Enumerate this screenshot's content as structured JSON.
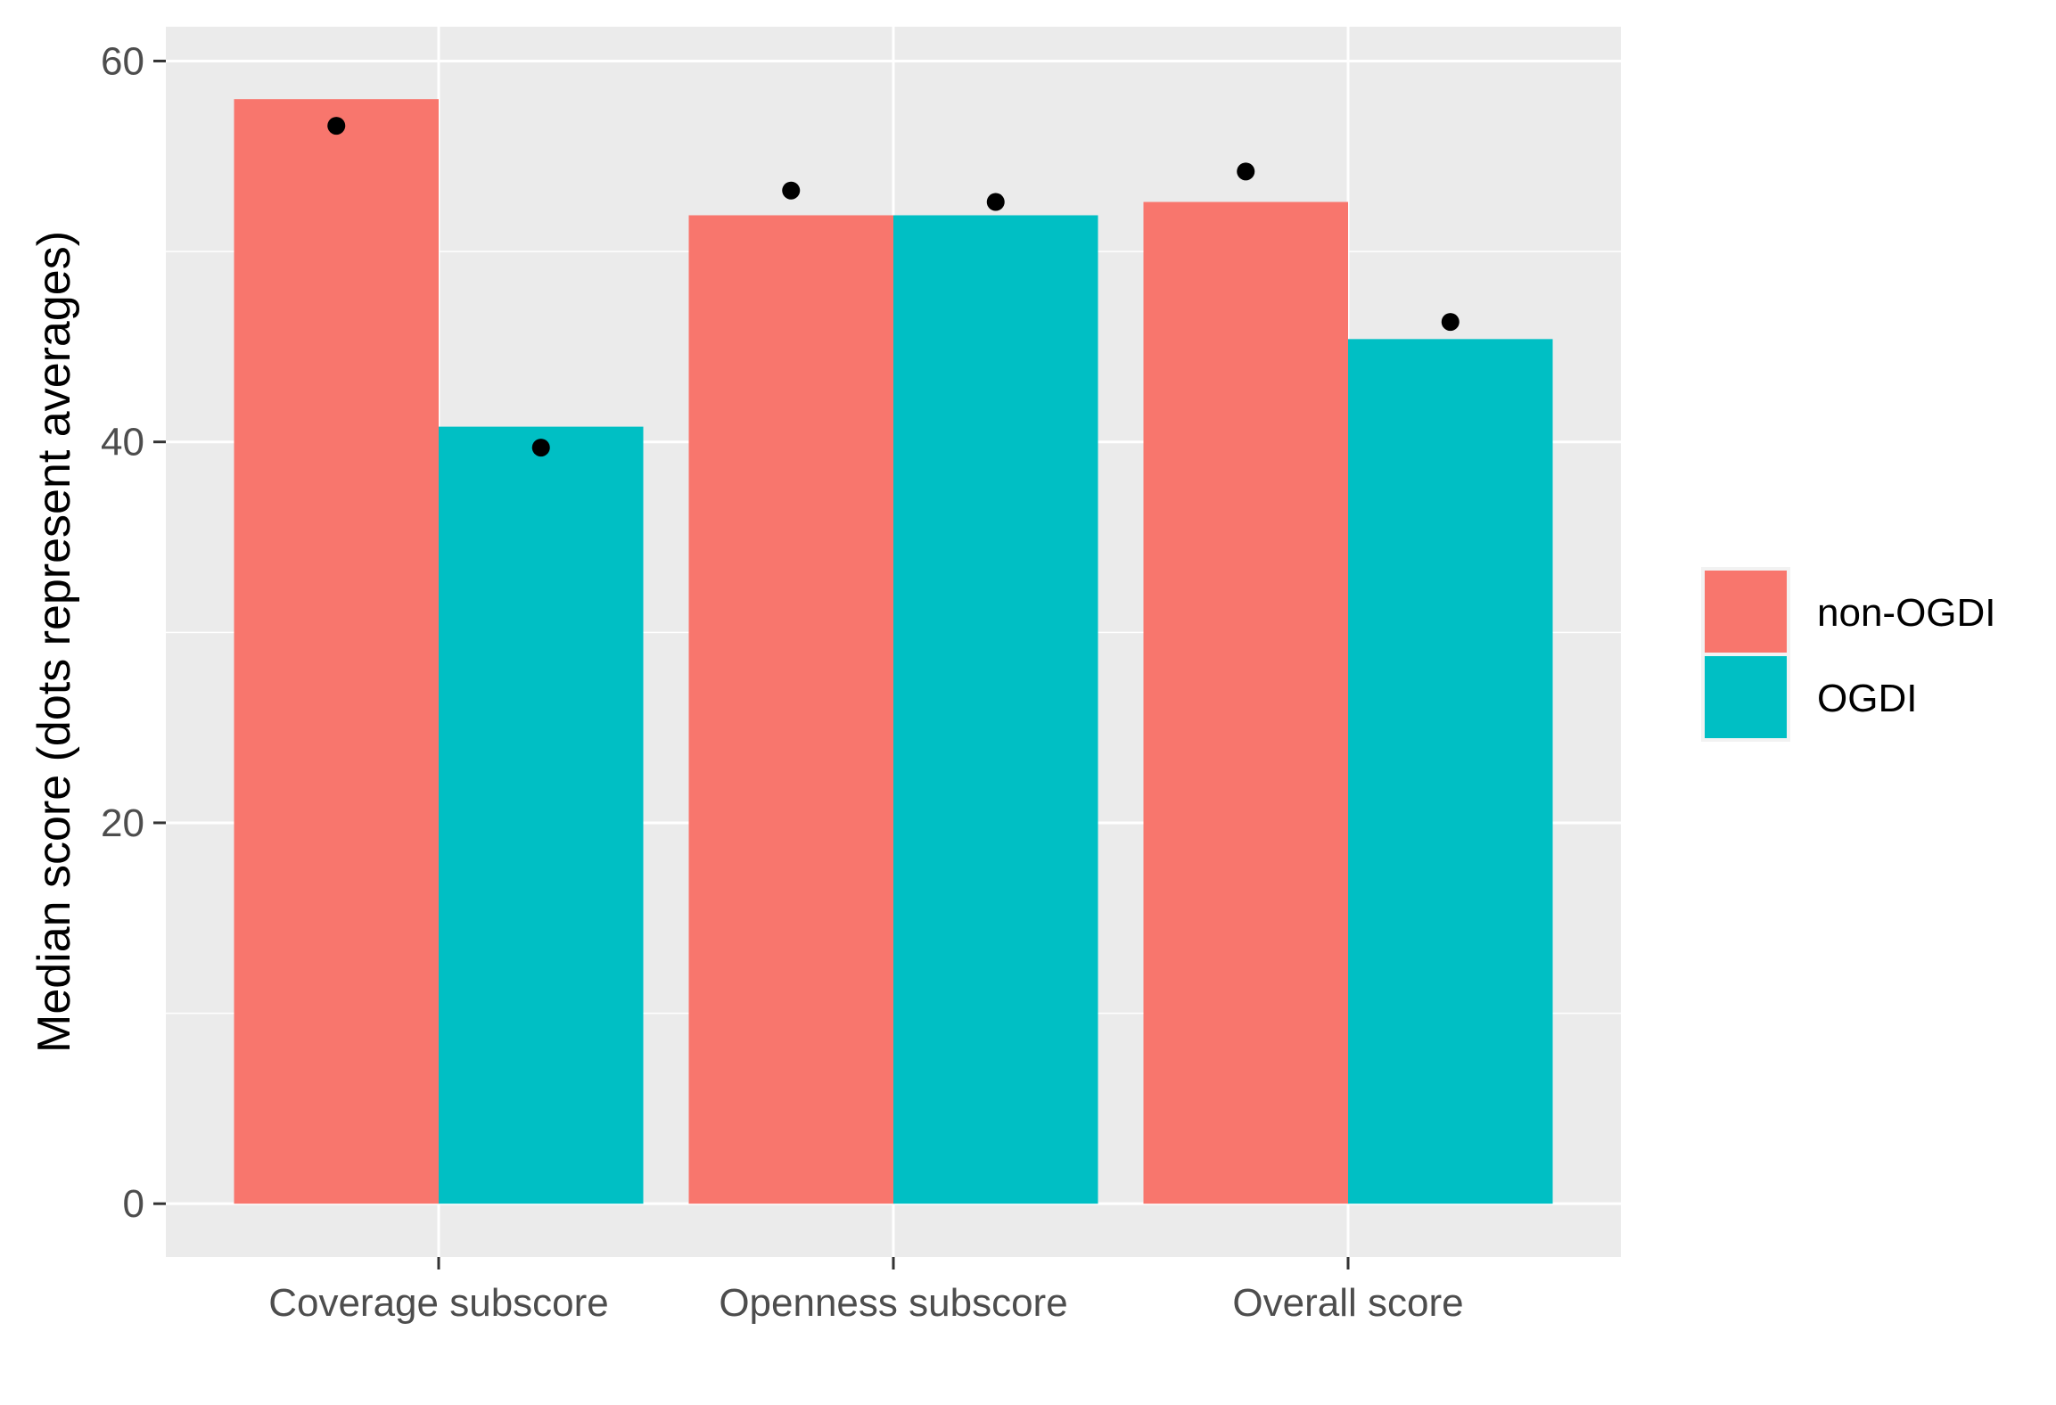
{
  "chart_data": {
    "type": "bar",
    "title": "",
    "xlabel": "",
    "ylabel": "Median score (dots represent averages)",
    "categories": [
      "Coverage subscore",
      "Openness subscore",
      "Overall score"
    ],
    "series": [
      {
        "name": "non-OGDI",
        "color": "#F8766D",
        "values": [
          58.0,
          51.9,
          52.6
        ],
        "averages": [
          56.6,
          53.2,
          54.2
        ]
      },
      {
        "name": "OGDI",
        "color": "#00BFC4",
        "values": [
          40.8,
          51.9,
          45.4
        ],
        "averages": [
          39.7,
          52.6,
          46.3
        ]
      }
    ],
    "ylim": [
      -2.8,
      61.8
    ],
    "yticks": [
      0,
      20,
      40,
      60
    ],
    "ytick_labels": [
      "0",
      "20",
      "40",
      "60"
    ],
    "grid": true,
    "panel_background": "#EBEBEB",
    "grid_color": "#FFFFFF",
    "point_color": "#000000",
    "legend_position": "right"
  }
}
